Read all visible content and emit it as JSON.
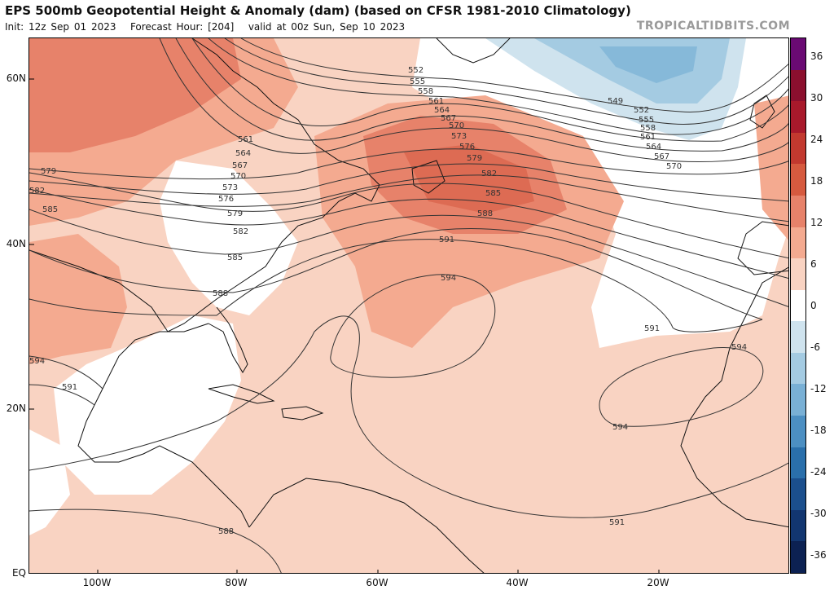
{
  "header": {
    "title": "EPS 500mb Geopotential Height & Anomaly (dam) (based on CFSR 1981-2010 Climatology)",
    "init": "Init: 12z Sep 01 2023",
    "forecast_hour": "Forecast Hour: [204]",
    "valid": "valid at 00z Sun, Sep 10 2023",
    "credit": "TROPICALTIDBITS.COM"
  },
  "axes": {
    "lat_labels": [
      "60N",
      "40N",
      "20N",
      "EQ"
    ],
    "lon_labels": [
      "100W",
      "80W",
      "60W",
      "40W",
      "20W"
    ]
  },
  "colorbar": {
    "labels": [
      "36",
      "30",
      "24",
      "18",
      "12",
      "6",
      "0",
      "-6",
      "-12",
      "-18",
      "-24",
      "-30",
      "-36"
    ],
    "colors": [
      "#6a0a73",
      "#8b0f2e",
      "#a8192b",
      "#c2392f",
      "#d65a3f",
      "#e7826a",
      "#f4aa90",
      "#f9d3c2",
      "#ffffff",
      "#cfe3ee",
      "#a4cbe2",
      "#79b0d5",
      "#4c8fc2",
      "#2a6fab",
      "#1b4f8d",
      "#123670",
      "#0c2152"
    ]
  },
  "contours": {
    "color": "#333333",
    "labels": [
      "552",
      "555",
      "558",
      "561",
      "564",
      "567",
      "570",
      "573",
      "576",
      "579",
      "582",
      "585",
      "588",
      "591",
      "594",
      "549",
      "552",
      "555",
      "558",
      "561",
      "564",
      "567",
      "570",
      "579",
      "582",
      "585",
      "561",
      "564",
      "567",
      "570",
      "573",
      "576",
      "579",
      "582",
      "585",
      "588",
      "591",
      "594",
      "591",
      "588",
      "594",
      "591"
    ]
  },
  "chart_data": {
    "type": "map",
    "field": "500mb geopotential height (dam) with anomaly shading",
    "lat_range": [
      "EQ",
      "65N"
    ],
    "lon_range": [
      "110W",
      "0"
    ],
    "features": [
      {
        "name": "ridge",
        "value": 594,
        "center": "30N 45W"
      },
      {
        "name": "ridge",
        "value": 594,
        "center": "22N 22W"
      },
      {
        "name": "positive anomaly max",
        "center": "50N 45W"
      },
      {
        "name": "negative anomaly",
        "center": "60N 30W"
      }
    ]
  }
}
